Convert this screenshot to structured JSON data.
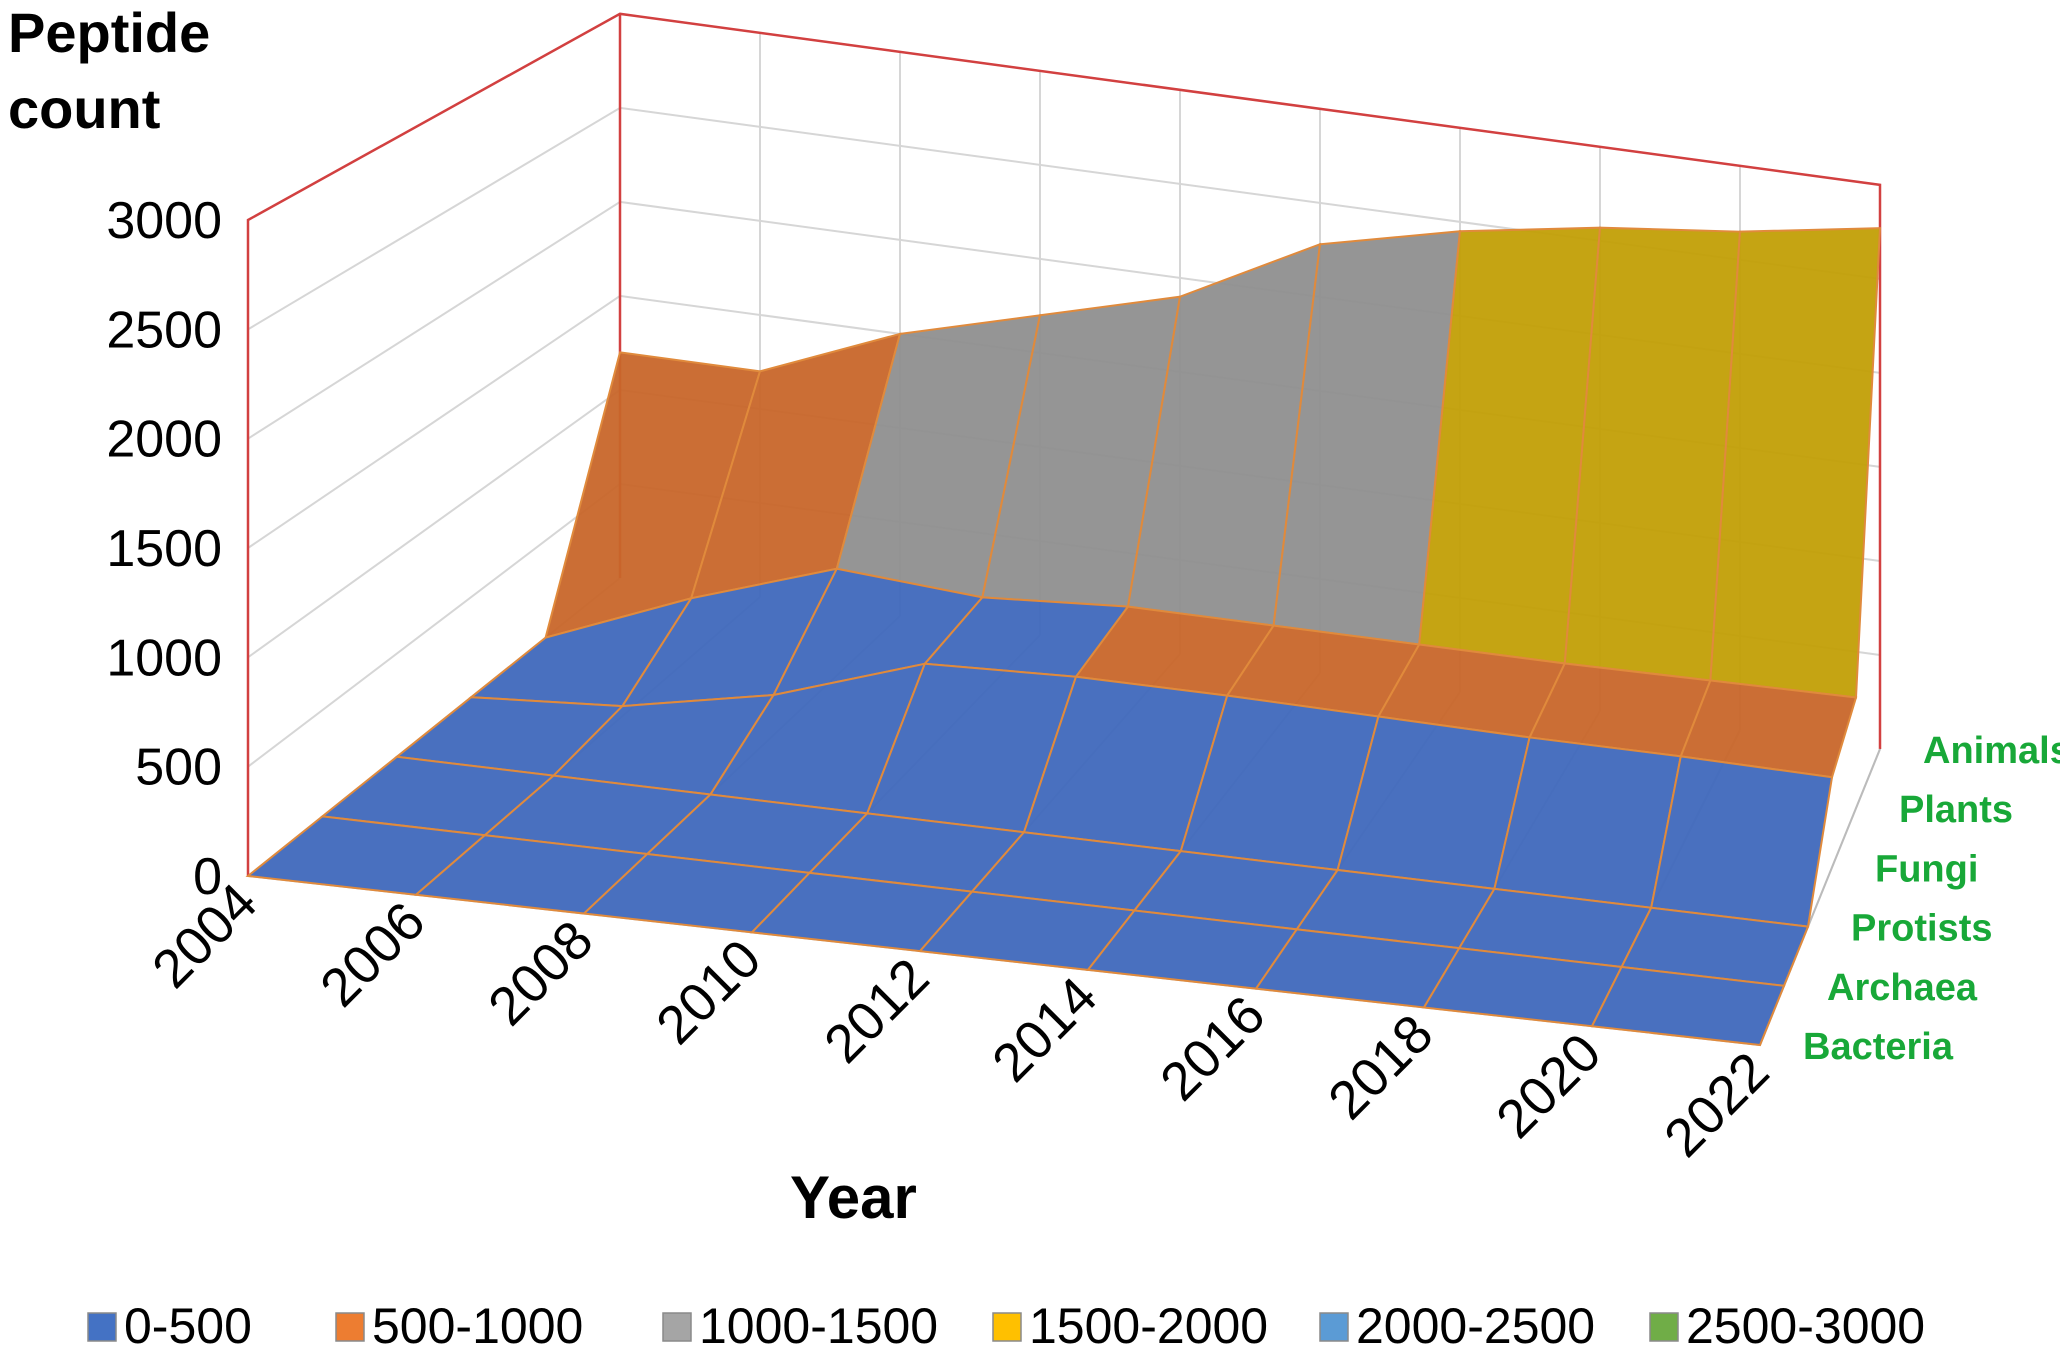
{
  "chart_data": {
    "type": "3d-surface",
    "title": "",
    "ylabel": "Peptide count",
    "xlabel": "Year",
    "y_ticks": [
      "0",
      "500",
      "1000",
      "1500",
      "2000",
      "2500",
      "3000"
    ],
    "ylim": [
      0,
      3000
    ],
    "x": [
      "2004",
      "2006",
      "2008",
      "2010",
      "2012",
      "2014",
      "2016",
      "2018",
      "2020",
      "2022"
    ],
    "series": [
      {
        "name": "Bacteria",
        "values": [
          0,
          0,
          0,
          0,
          0,
          0,
          0,
          0,
          0,
          0
        ]
      },
      {
        "name": "Archaea",
        "values": [
          0,
          0,
          0,
          0,
          0,
          0,
          0,
          0,
          0,
          0
        ]
      },
      {
        "name": "Protists",
        "values": [
          0,
          0,
          0,
          0,
          0,
          0,
          0,
          0,
          0,
          0
        ]
      },
      {
        "name": "Fungi",
        "values": [
          0,
          50,
          200,
          450,
          480,
          480,
          470,
          460,
          460,
          450
        ]
      },
      {
        "name": "Plants",
        "values": [
          0,
          300,
          550,
          500,
          550,
          550,
          550,
          550,
          560,
          570
        ]
      },
      {
        "name": "Animals",
        "values": [
          1200,
          1200,
          1500,
          1700,
          1900,
          2280,
          2450,
          2570,
          2650,
          2770
        ]
      }
    ],
    "z_labels": [
      "Bacteria",
      "Archaea",
      "Protists",
      "Fungi",
      "Plants",
      "Animals"
    ],
    "z_label_color": "#18a838",
    "legend": {
      "placement": "bottom",
      "items": [
        {
          "label": "0-500",
          "color": "#4472c4"
        },
        {
          "label": "500-1000",
          "color": "#ed7d31"
        },
        {
          "label": "1000-1500",
          "color": "#a5a5a5"
        },
        {
          "label": "1500-2000",
          "color": "#ffc000"
        },
        {
          "label": "2000-2500",
          "color": "#5b9bd5"
        },
        {
          "label": "2500-3000",
          "color": "#70ad47"
        }
      ]
    },
    "band_colors": [
      "#3f68bc",
      "#c8662a",
      "#8f8f8f",
      "#c29f06",
      "#3c6c9a",
      "#4e8b33"
    ],
    "mesh_color": "#e08a3c",
    "back_wall_color": "#d24040",
    "grid": true
  }
}
